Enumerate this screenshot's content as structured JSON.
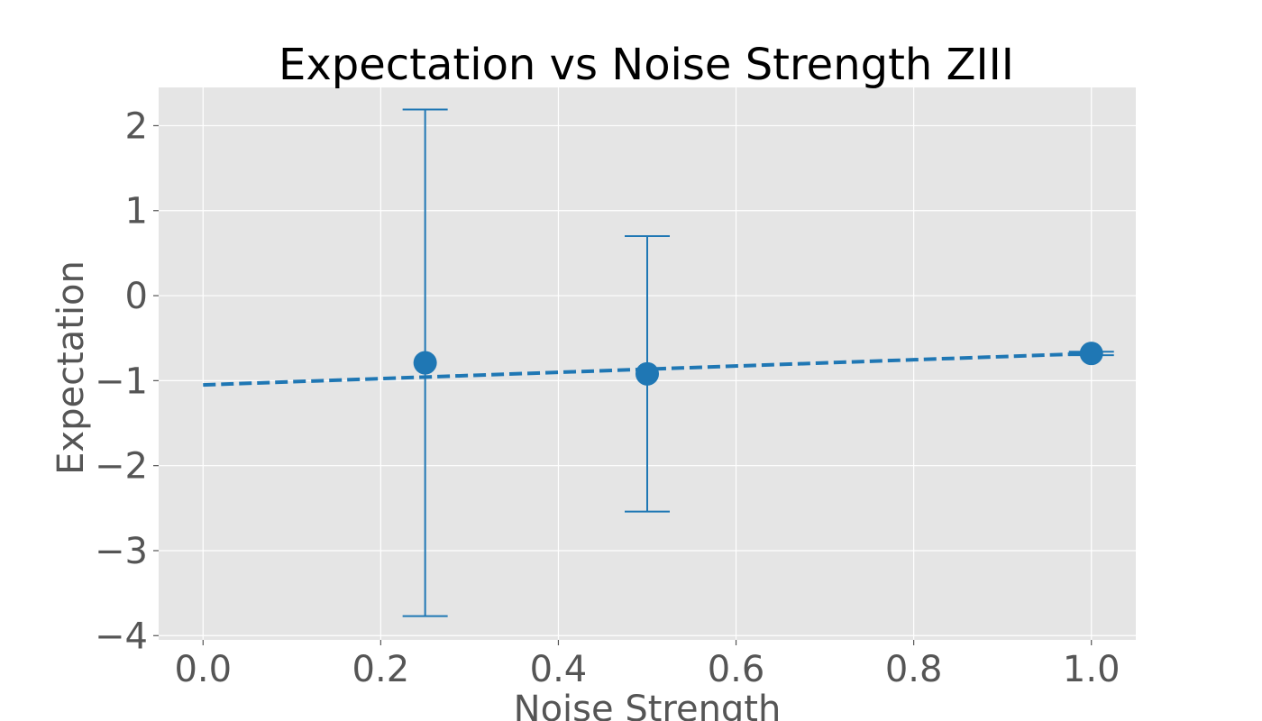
{
  "chart_data": {
    "type": "scatter",
    "title": "Expectation vs Noise Strength ZIII",
    "xlabel": "Noise Strength",
    "ylabel": "Expectation",
    "xlim": [
      -0.05,
      1.05
    ],
    "ylim": [
      -4.05,
      2.45
    ],
    "xticks": [
      0.0,
      0.2,
      0.4,
      0.6,
      0.8,
      1.0
    ],
    "xtick_labels": [
      "0.0",
      "0.2",
      "0.4",
      "0.6",
      "0.8",
      "1.0"
    ],
    "yticks": [
      2,
      1,
      0,
      -1,
      -2,
      -3,
      -4
    ],
    "ytick_labels": [
      "2",
      "1",
      "0",
      "−1",
      "−2",
      "−3",
      "−4"
    ],
    "grid": true,
    "points": {
      "x": [
        0.25,
        0.5,
        1.0
      ],
      "y": [
        -0.79,
        -0.92,
        -0.68
      ],
      "yerr": [
        2.98,
        1.62,
        0.02
      ]
    },
    "fit_line": {
      "style": "dashed",
      "x": [
        0.0,
        1.0
      ],
      "y": [
        -1.05,
        -0.68
      ]
    },
    "colors": {
      "series": "#1f77b4",
      "plot_background": "#e5e5e5",
      "grid": "#ffffff"
    }
  }
}
